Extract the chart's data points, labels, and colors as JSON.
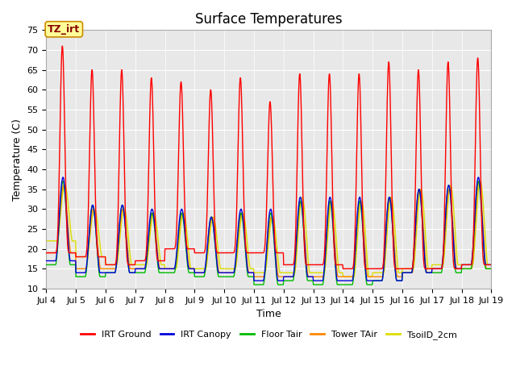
{
  "title": "Surface Temperatures",
  "xlabel": "Time",
  "ylabel": "Temperature (C)",
  "ylim": [
    10,
    75
  ],
  "yticks": [
    10,
    15,
    20,
    25,
    30,
    35,
    40,
    45,
    50,
    55,
    60,
    65,
    70,
    75
  ],
  "x_start_day": 4,
  "x_end_day": 19,
  "n_days": 15,
  "plot_bg_color": "#e8e8e8",
  "grid_color": "#ffffff",
  "legend_labels": [
    "IRT Ground",
    "IRT Canopy",
    "Floor Tair",
    "Tower TAir",
    "TsoilD_2cm"
  ],
  "legend_colors": [
    "#ff0000",
    "#0000dd",
    "#00bb00",
    "#ff8800",
    "#dddd00"
  ],
  "annotation_text": "TZ_irt",
  "annotation_bg": "#ffff99",
  "annotation_border": "#cc8800",
  "title_fontsize": 12,
  "label_fontsize": 9,
  "tick_fontsize": 8,
  "xtick_days": [
    4,
    5,
    6,
    7,
    8,
    9,
    10,
    11,
    12,
    13,
    14,
    15,
    16,
    17,
    18,
    19
  ]
}
